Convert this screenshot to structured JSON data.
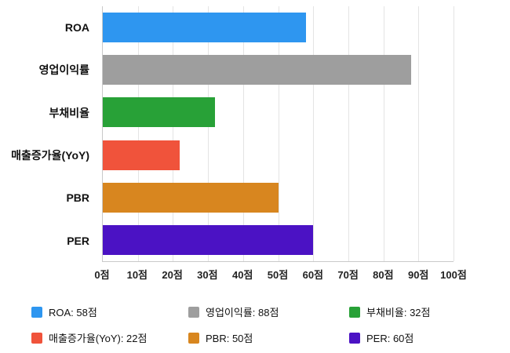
{
  "chart_data": {
    "type": "bar",
    "orientation": "horizontal",
    "title": "",
    "categories": [
      "ROA",
      "영업이익률",
      "부채비율",
      "매출증가율(YoY)",
      "PBR",
      "PER"
    ],
    "values": [
      58,
      88,
      32,
      22,
      50,
      60
    ],
    "colors": [
      "#2E96F0",
      "#9E9E9E",
      "#28A137",
      "#F0533B",
      "#D8861F",
      "#4B12C4"
    ],
    "xlim": [
      0,
      100
    ],
    "x_ticks": [
      0,
      10,
      20,
      30,
      40,
      50,
      60,
      70,
      80,
      90,
      100
    ],
    "tick_suffix": "점",
    "grid": true,
    "legend_position": "bottom",
    "legend": [
      {
        "label": "ROA: 58점",
        "color": "#2E96F0"
      },
      {
        "label": "영업이익률: 88점",
        "color": "#9E9E9E"
      },
      {
        "label": "부채비율: 32점",
        "color": "#28A137"
      },
      {
        "label": "매출증가율(YoY): 22점",
        "color": "#F0533B"
      },
      {
        "label": "PBR: 50점",
        "color": "#D8861F"
      },
      {
        "label": "PER: 60점",
        "color": "#4B12C4"
      }
    ]
  }
}
